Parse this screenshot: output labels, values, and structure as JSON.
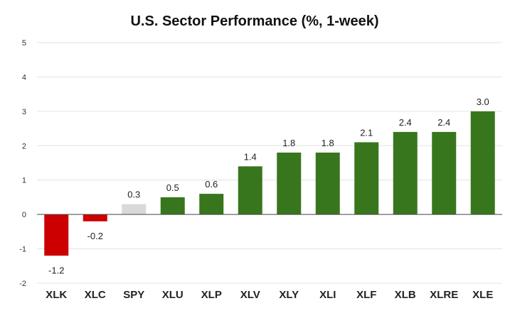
{
  "chart_data": {
    "type": "bar",
    "title": "U.S. Sector Performance (%, 1-week)",
    "xlabel": "",
    "ylabel": "",
    "ylim": [
      -2,
      5
    ],
    "yticks": [
      -2,
      -1,
      0,
      1,
      2,
      3,
      4,
      5
    ],
    "ytick_labels": [
      "-2",
      "-1",
      "0",
      "1",
      "2",
      "3",
      "4",
      "5"
    ],
    "grid": true,
    "categories": [
      "XLK",
      "XLC",
      "SPY",
      "XLU",
      "XLP",
      "XLV",
      "XLY",
      "XLI",
      "XLF",
      "XLB",
      "XLRE",
      "XLE"
    ],
    "values": [
      -1.2,
      -0.2,
      0.3,
      0.5,
      0.6,
      1.4,
      1.8,
      1.8,
      2.1,
      2.4,
      2.4,
      3.0
    ],
    "data_labels": [
      "-1.2",
      "-0.2",
      "0.3",
      "0.5",
      "0.6",
      "1.4",
      "1.8",
      "1.8",
      "2.1",
      "2.4",
      "2.4",
      "3.0"
    ],
    "colors": {
      "negative": "#cc0000",
      "benchmark": "#d9d9d9",
      "positive": "#38761d"
    },
    "bar_colors": [
      "#cc0000",
      "#cc0000",
      "#d9d9d9",
      "#38761d",
      "#38761d",
      "#38761d",
      "#38761d",
      "#38761d",
      "#38761d",
      "#38761d",
      "#38761d",
      "#38761d"
    ]
  }
}
